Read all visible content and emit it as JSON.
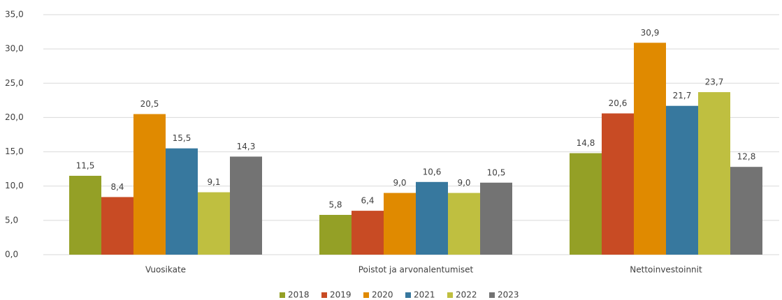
{
  "chart_data": {
    "type": "bar",
    "categories": [
      "Vuosikate",
      "Poistot ja arvonalentumiset",
      "Nettoinvestoinnit"
    ],
    "series": [
      {
        "name": "2018",
        "color": "#94a026",
        "values": [
          11.5,
          5.8,
          14.8
        ],
        "value_labels": [
          "11,5",
          "5,8",
          "14,8"
        ]
      },
      {
        "name": "2019",
        "color": "#c84b24",
        "values": [
          8.4,
          6.4,
          20.6
        ],
        "value_labels": [
          "8,4",
          "6,4",
          "20,6"
        ]
      },
      {
        "name": "2020",
        "color": "#e08a00",
        "values": [
          20.5,
          9.0,
          30.9
        ],
        "value_labels": [
          "20,5",
          "9,0",
          "30,9"
        ]
      },
      {
        "name": "2021",
        "color": "#37789e",
        "values": [
          15.5,
          10.6,
          21.7
        ],
        "value_labels": [
          "15,5",
          "10,6",
          "21,7"
        ]
      },
      {
        "name": "2022",
        "color": "#bfbf40",
        "values": [
          9.1,
          9.0,
          23.7
        ],
        "value_labels": [
          "9,1",
          "9,0",
          "23,7"
        ]
      },
      {
        "name": "2023",
        "color": "#737373",
        "values": [
          14.3,
          10.5,
          12.8
        ],
        "value_labels": [
          "14,3",
          "10,5",
          "12,8"
        ]
      }
    ],
    "ylim": [
      0,
      35
    ],
    "yticks": [
      {
        "value": 0,
        "label": "0,0"
      },
      {
        "value": 5,
        "label": "5,0"
      },
      {
        "value": 10,
        "label": "10,0"
      },
      {
        "value": 15,
        "label": "15,0"
      },
      {
        "value": 20,
        "label": "20,0"
      },
      {
        "value": 25,
        "label": "25,0"
      },
      {
        "value": 30,
        "label": "30,0"
      },
      {
        "value": 35,
        "label": "35,0"
      }
    ],
    "grid": true,
    "legend": "bottom"
  }
}
